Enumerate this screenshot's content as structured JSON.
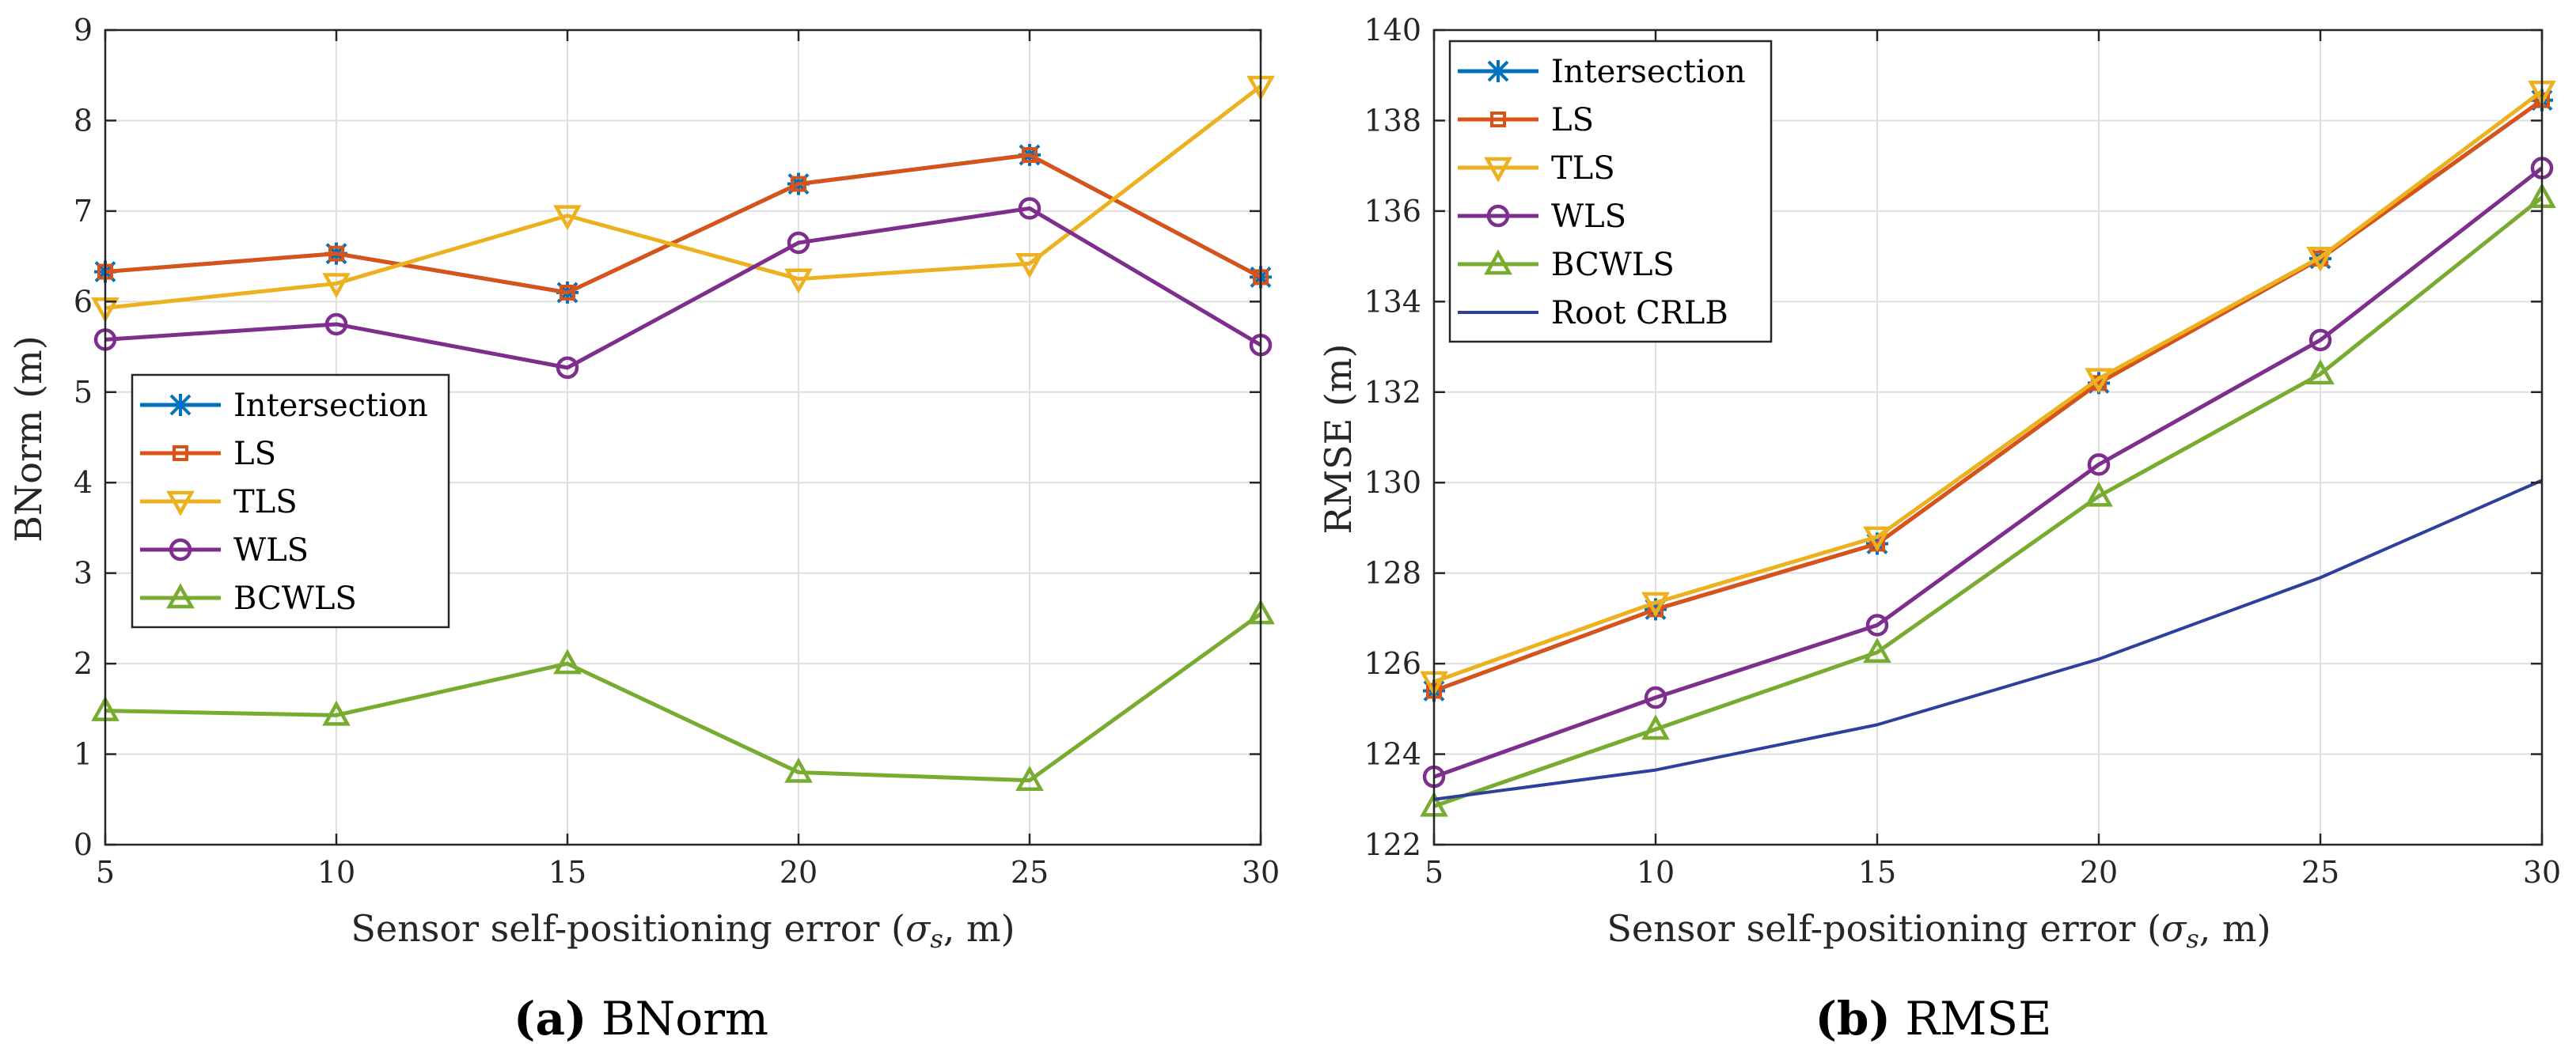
{
  "colors": {
    "Intersection": "#0072BD",
    "LS": "#D95319",
    "TLS": "#EDB120",
    "WLS": "#7E2F8E",
    "BCWLS": "#77AC30",
    "Root CRLB": "#2E3F9E"
  },
  "chart_data": [
    {
      "type": "line",
      "caption_label": "(a)",
      "caption_text": " BNorm",
      "title": "",
      "xlabel_prefix": "Sensor self-positioning error (",
      "xlabel_symbol": "σ",
      "xlabel_subscript": "s",
      "xlabel_suffix": ", m)",
      "ylabel": "BNorm (m)",
      "x": [
        5,
        10,
        15,
        20,
        25,
        30
      ],
      "xlim": [
        5,
        30
      ],
      "ylim": [
        0,
        9
      ],
      "xticks": [
        5,
        10,
        15,
        20,
        25,
        30
      ],
      "yticks": [
        0,
        1,
        2,
        3,
        4,
        5,
        6,
        7,
        8,
        9
      ],
      "grid": true,
      "legend_position": "middle-left",
      "series": [
        {
          "name": "Intersection",
          "marker": "asterisk",
          "values": [
            6.33,
            6.53,
            6.1,
            7.3,
            7.62,
            6.27
          ]
        },
        {
          "name": "LS",
          "marker": "square",
          "values": [
            6.33,
            6.53,
            6.1,
            7.3,
            7.62,
            6.27
          ]
        },
        {
          "name": "TLS",
          "marker": "triangle-down",
          "values": [
            5.93,
            6.2,
            6.95,
            6.25,
            6.42,
            8.38
          ]
        },
        {
          "name": "WLS",
          "marker": "circle",
          "values": [
            5.58,
            5.75,
            5.27,
            6.65,
            7.03,
            5.52
          ]
        },
        {
          "name": "BCWLS",
          "marker": "triangle-up",
          "values": [
            1.48,
            1.43,
            2.0,
            0.8,
            0.71,
            2.55
          ]
        }
      ]
    },
    {
      "type": "line",
      "caption_label": "(b)",
      "caption_text": " RMSE",
      "title": "",
      "xlabel_prefix": "Sensor self-positioning error (",
      "xlabel_symbol": "σ",
      "xlabel_subscript": "s",
      "xlabel_suffix": ", m)",
      "ylabel": "RMSE (m)",
      "x": [
        5,
        10,
        15,
        20,
        25,
        30
      ],
      "xlim": [
        5,
        30
      ],
      "ylim": [
        122,
        140
      ],
      "xticks": [
        5,
        10,
        15,
        20,
        25,
        30
      ],
      "yticks": [
        122,
        124,
        126,
        128,
        130,
        132,
        134,
        136,
        138,
        140
      ],
      "grid": true,
      "legend_position": "top-left",
      "series": [
        {
          "name": "Intersection",
          "marker": "asterisk",
          "values": [
            125.4,
            127.2,
            128.65,
            132.2,
            134.95,
            138.45
          ]
        },
        {
          "name": "LS",
          "marker": "square",
          "values": [
            125.4,
            127.2,
            128.65,
            132.2,
            134.95,
            138.45
          ]
        },
        {
          "name": "TLS",
          "marker": "triangle-down",
          "values": [
            125.6,
            127.35,
            128.8,
            132.3,
            134.98,
            138.65
          ]
        },
        {
          "name": "WLS",
          "marker": "circle",
          "values": [
            123.5,
            125.25,
            126.85,
            130.4,
            133.15,
            136.95
          ]
        },
        {
          "name": "BCWLS",
          "marker": "triangle-up",
          "values": [
            122.85,
            124.55,
            126.25,
            129.7,
            132.4,
            136.3
          ]
        },
        {
          "name": "Root CRLB",
          "marker": "none",
          "values": [
            123.0,
            123.65,
            124.65,
            126.1,
            127.9,
            130.05
          ]
        }
      ]
    }
  ]
}
